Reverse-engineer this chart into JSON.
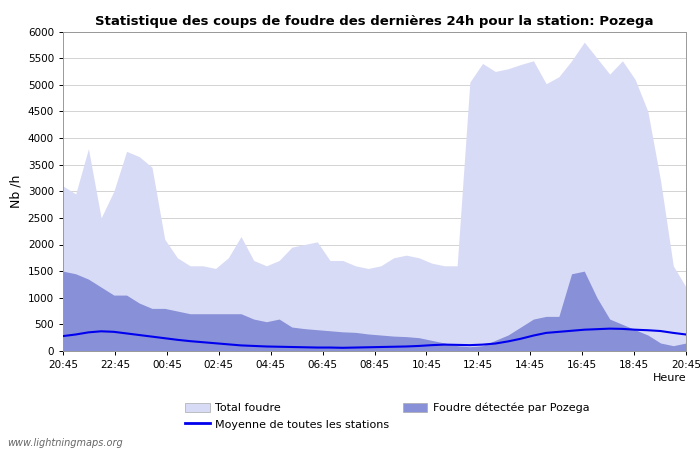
{
  "title": "Statistique des coups de foudre des dernières 24h pour la station: Pozega",
  "xlabel": "Heure",
  "ylabel": "Nb /h",
  "ylim": [
    0,
    6000
  ],
  "yticks": [
    0,
    500,
    1000,
    1500,
    2000,
    2500,
    3000,
    3500,
    4000,
    4500,
    5000,
    5500,
    6000
  ],
  "xtick_labels": [
    "20:45",
    "22:45",
    "00:45",
    "02:45",
    "04:45",
    "06:45",
    "08:45",
    "10:45",
    "12:45",
    "14:45",
    "16:45",
    "18:45",
    "20:45"
  ],
  "bg_color": "#ffffff",
  "grid_color": "#cccccc",
  "total_foudre_color": "#d8dbf5",
  "pozega_color": "#8890d8",
  "mean_line_color": "#0000ee",
  "watermark": "www.lightningmaps.org",
  "total_foudre": [
    3100,
    2950,
    3800,
    2500,
    3000,
    3750,
    3650,
    3450,
    2100,
    1750,
    1600,
    1600,
    1550,
    1750,
    2150,
    1700,
    1600,
    1700,
    1950,
    2000,
    2050,
    1700,
    1700,
    1600,
    1550,
    1600,
    1750,
    1800,
    1750,
    1650,
    1600,
    1600,
    5050,
    5400,
    5250,
    5300,
    5380,
    5450,
    5020,
    5150,
    5450,
    5800,
    5500,
    5200,
    5450,
    5100,
    4500,
    3200,
    1600,
    1200
  ],
  "pozega": [
    1500,
    1450,
    1350,
    1200,
    1050,
    1050,
    900,
    800,
    800,
    750,
    700,
    700,
    700,
    700,
    700,
    600,
    550,
    600,
    450,
    420,
    400,
    380,
    360,
    350,
    320,
    300,
    280,
    270,
    250,
    200,
    150,
    100,
    80,
    100,
    200,
    300,
    450,
    600,
    650,
    650,
    1450,
    1500,
    1000,
    600,
    500,
    400,
    300,
    150,
    100,
    150
  ],
  "mean_line": [
    280,
    310,
    350,
    370,
    360,
    330,
    300,
    270,
    240,
    210,
    185,
    165,
    145,
    125,
    105,
    95,
    85,
    80,
    75,
    70,
    65,
    65,
    60,
    65,
    70,
    75,
    80,
    85,
    95,
    110,
    120,
    115,
    110,
    120,
    140,
    180,
    230,
    290,
    340,
    360,
    380,
    400,
    410,
    420,
    415,
    400,
    390,
    375,
    340,
    310
  ]
}
